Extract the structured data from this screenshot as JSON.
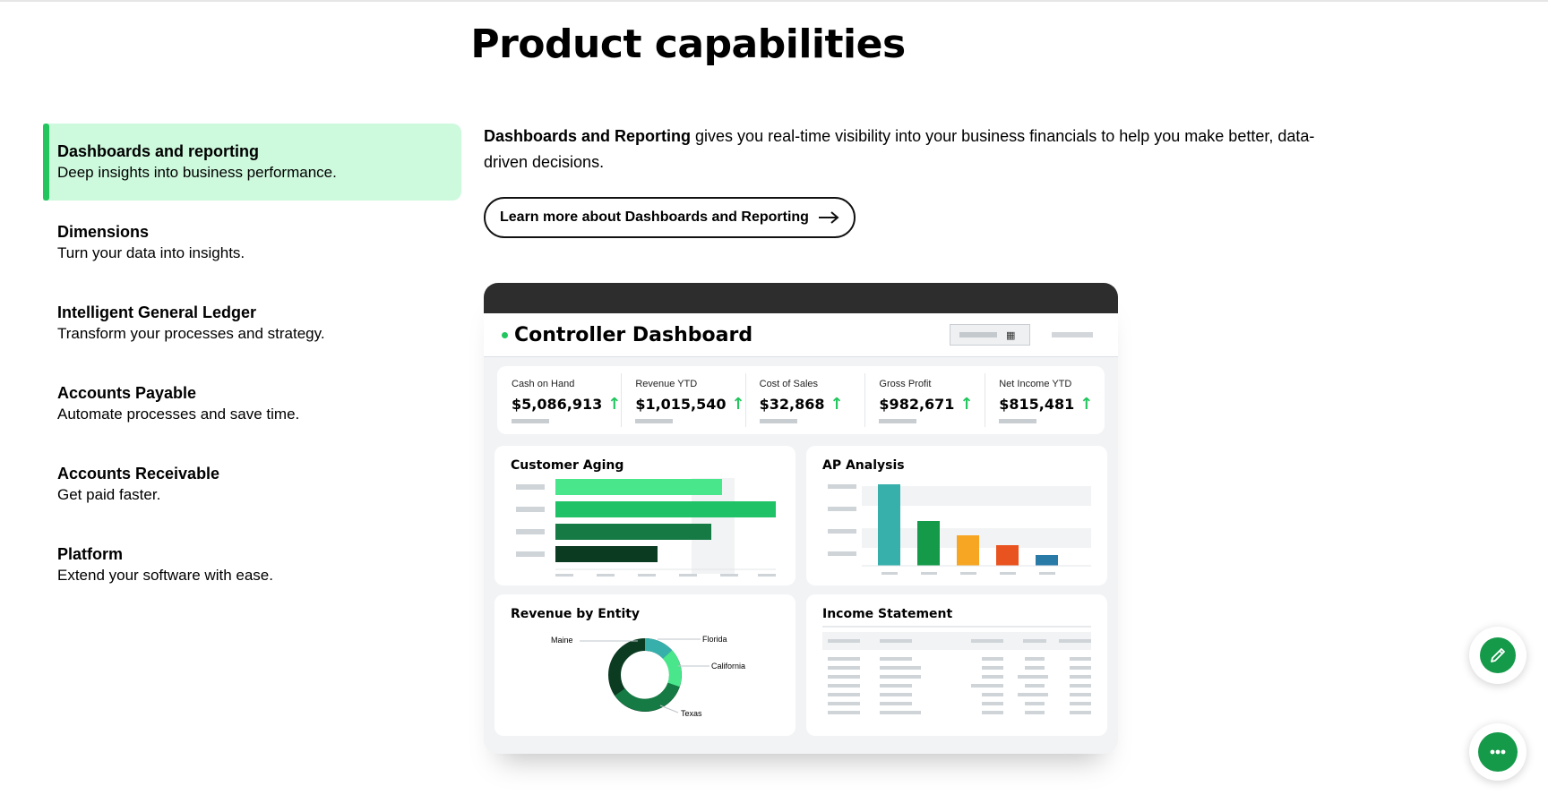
{
  "page": {
    "title": "Product capabilities"
  },
  "capabilities": [
    {
      "title": "Dashboards and reporting",
      "desc": "Deep insights into business performance.",
      "active": true
    },
    {
      "title": "Dimensions",
      "desc": "Turn your data into insights."
    },
    {
      "title": "Intelligent General Ledger",
      "desc": "Transform your processes and strategy."
    },
    {
      "title": "Accounts Payable",
      "desc": "Automate processes and save time."
    },
    {
      "title": "Accounts Receivable",
      "desc": "Get paid faster."
    },
    {
      "title": "Platform",
      "desc": "Extend your software with ease."
    }
  ],
  "detail": {
    "intro_bold": "Dashboards and Reporting",
    "intro_rest": " gives you real-time visibility into your business financials to help you make better, data-driven decisions.",
    "learn_more": "Learn more about Dashboards and Reporting"
  },
  "dashboard": {
    "title": "Controller Dashboard",
    "kpis": [
      {
        "label": "Cash on Hand",
        "value": "$5,086,913"
      },
      {
        "label": "Revenue YTD",
        "value": "$1,015,540"
      },
      {
        "label": "Cost of Sales",
        "value": "$32,868"
      },
      {
        "label": "Gross Profit",
        "value": "$982,671"
      },
      {
        "label": "Net Income YTD",
        "value": "$815,481"
      }
    ],
    "cards": {
      "customer_aging": "Customer Aging",
      "ap_analysis": "AP Analysis",
      "revenue_by_entity": "Revenue by Entity",
      "income_statement": "Income Statement"
    },
    "entities": [
      "Maine",
      "Florida",
      "California",
      "Texas"
    ]
  },
  "colors": {
    "accent": "#22c55e",
    "active_bg": "#cdf9dd",
    "fab": "#159a4a"
  },
  "icons": {
    "arrow": "arrow-right-icon",
    "pencil": "pencil-icon",
    "chat": "chat-icon",
    "calendar": "calendar-icon"
  }
}
